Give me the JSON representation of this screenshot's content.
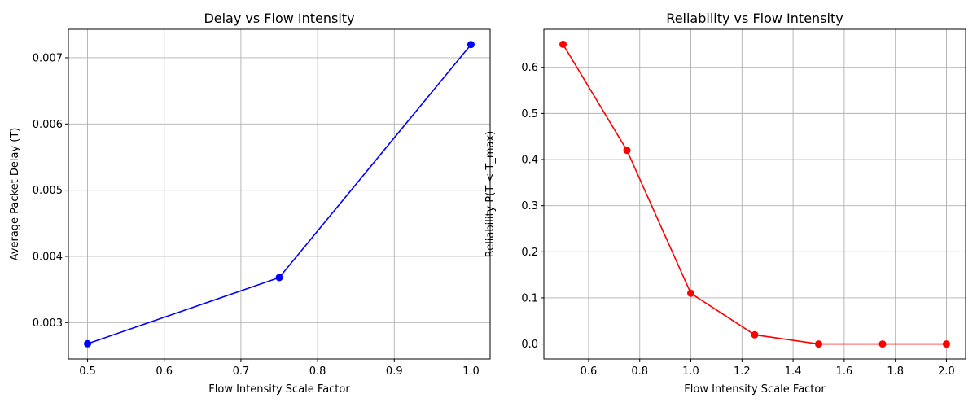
{
  "chart_data": [
    {
      "type": "line",
      "title": "Delay vs Flow Intensity",
      "xlabel": "Flow Intensity Scale Factor",
      "ylabel": "Average Packet Delay (T)",
      "xlim": [
        0.475,
        1.025
      ],
      "ylim": [
        0.00245,
        0.00743
      ],
      "xticks": [
        0.5,
        0.6,
        0.7,
        0.8,
        0.9,
        1.0
      ],
      "xtick_labels": [
        "0.5",
        "0.6",
        "0.7",
        "0.8",
        "0.9",
        "1.0"
      ],
      "yticks": [
        0.003,
        0.004,
        0.005,
        0.006,
        0.007
      ],
      "ytick_labels": [
        "0.003",
        "0.004",
        "0.005",
        "0.006",
        "0.007"
      ],
      "grid": true,
      "series": [
        {
          "color": "#0000ff",
          "marker": "circle",
          "x": [
            0.5,
            0.75,
            1.0
          ],
          "y": [
            0.00268,
            0.00368,
            0.0072
          ]
        }
      ]
    },
    {
      "type": "line",
      "title": "Reliability vs Flow Intensity",
      "xlabel": "Flow Intensity Scale Factor",
      "ylabel": "Reliability P(T < T_max)",
      "xlim": [
        0.425,
        2.075
      ],
      "ylim": [
        -0.0325,
        0.6825
      ],
      "xticks": [
        0.6,
        0.8,
        1.0,
        1.2,
        1.4,
        1.6,
        1.8,
        2.0
      ],
      "xtick_labels": [
        "0.6",
        "0.8",
        "1.0",
        "1.2",
        "1.4",
        "1.6",
        "1.8",
        "2.0"
      ],
      "yticks": [
        0.0,
        0.1,
        0.2,
        0.3,
        0.4,
        0.5,
        0.6
      ],
      "ytick_labels": [
        "0.0",
        "0.1",
        "0.2",
        "0.3",
        "0.4",
        "0.5",
        "0.6"
      ],
      "grid": true,
      "series": [
        {
          "color": "#ff0000",
          "marker": "circle",
          "x": [
            0.5,
            0.75,
            1.0,
            1.25,
            1.5,
            1.75,
            2.0
          ],
          "y": [
            0.65,
            0.42,
            0.11,
            0.02,
            0.0,
            0.0,
            0.0
          ]
        }
      ]
    }
  ]
}
